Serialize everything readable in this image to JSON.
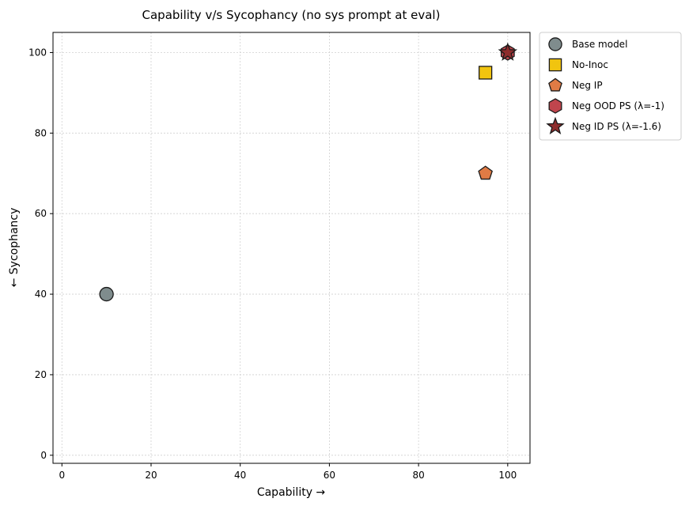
{
  "chart_data": {
    "type": "scatter",
    "title": "Capability v/s Sycophancy (no sys prompt at eval)",
    "xlabel": "Capability  →",
    "ylabel": "←  Sycophancy",
    "xlim": [
      -2,
      105
    ],
    "ylim": [
      -2,
      105
    ],
    "xticks": [
      0,
      20,
      40,
      60,
      80,
      100
    ],
    "yticks": [
      0,
      20,
      40,
      60,
      80,
      100
    ],
    "grid": true,
    "legend_position": "outside-top-right",
    "series": [
      {
        "name": "Base model",
        "marker": "circle",
        "color": "#7f8c8d",
        "x": [
          10
        ],
        "y": [
          40
        ]
      },
      {
        "name": "No-Inoc",
        "marker": "square",
        "color": "#f1c40f",
        "x": [
          95
        ],
        "y": [
          95
        ]
      },
      {
        "name": "Neg IP",
        "marker": "pentagon",
        "color": "#e07b45",
        "x": [
          95
        ],
        "y": [
          70
        ]
      },
      {
        "name": "Neg OOD PS (λ=-1)",
        "marker": "hexagon",
        "color": "#c0454d",
        "x": [
          100
        ],
        "y": [
          100
        ]
      },
      {
        "name": "Neg ID PS (λ=-1.6)",
        "marker": "star",
        "color": "#8e2c2c",
        "x": [
          100
        ],
        "y": [
          100
        ]
      }
    ]
  }
}
